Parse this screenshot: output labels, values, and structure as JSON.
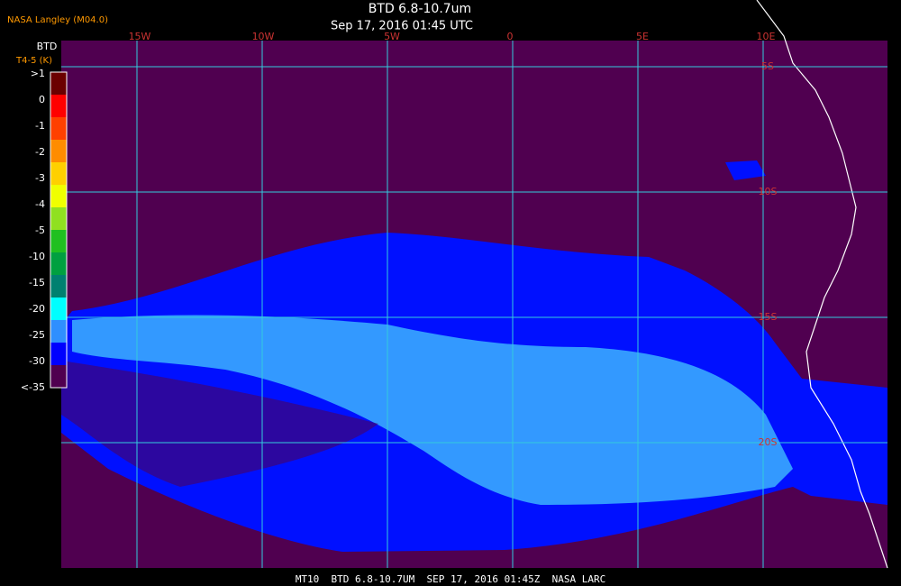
{
  "header": {
    "source": "NASA Langley (M04.0)",
    "title": "BTD 6.8-10.7um",
    "subtitle": "Sep 17, 2016 01:45 UTC"
  },
  "legend": {
    "title": "BTD",
    "unit": "T4-5 (K)",
    "labels": [
      ">1",
      "0",
      "-1",
      "-2",
      "-3",
      "-4",
      "-5",
      "-10",
      "-15",
      "-20",
      "-25",
      "-30",
      "<-35"
    ],
    "colors": [
      "#6b0000",
      "#ff0000",
      "#ff4000",
      "#ff8c00",
      "#ffd000",
      "#f0ff00",
      "#90e020",
      "#20c020",
      "#00a040",
      "#008070",
      "#00ffff",
      "#2f8fff",
      "#0000ff",
      "#500050"
    ]
  },
  "map": {
    "longitudes": [
      "15W",
      "10W",
      "5W",
      "0",
      "5E",
      "10E"
    ],
    "latitudes": [
      "5S",
      "10S",
      "15S",
      "20S"
    ]
  },
  "footer": "MT10  BTD 6.8-10.7UM  SEP 17, 2016 01:45Z  NASA LARC"
}
